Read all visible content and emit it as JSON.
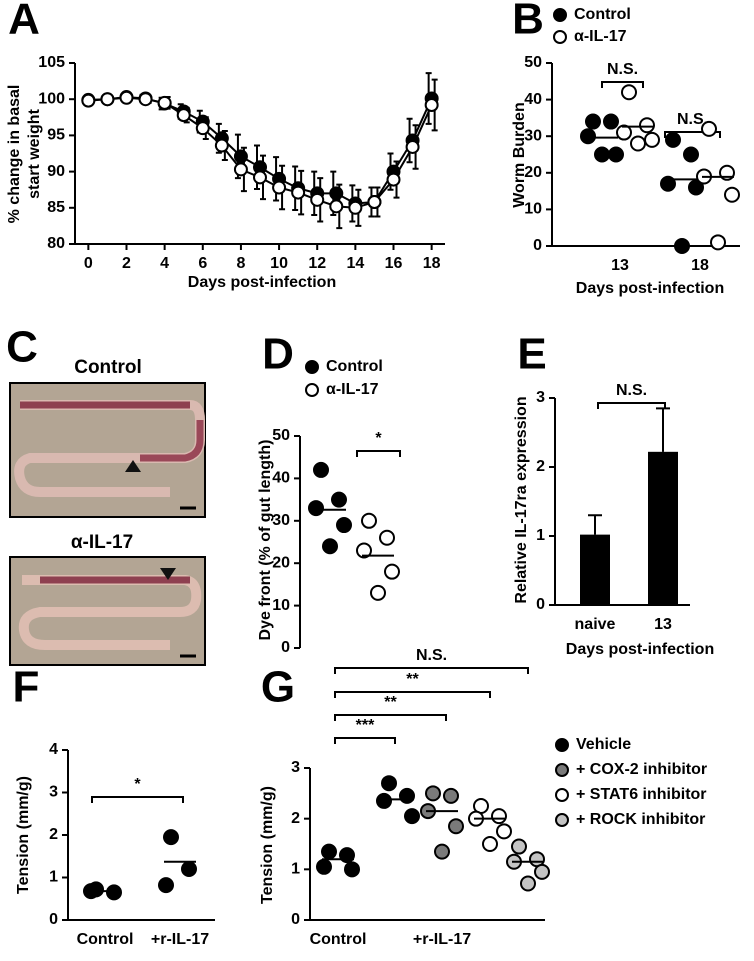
{
  "chart_data": [
    {
      "panel": "A",
      "type": "line",
      "ylabel": [
        "% change in basal",
        "start weight"
      ],
      "xlabel": "Days post-infection",
      "x": [
        0,
        1,
        2,
        3,
        4,
        5,
        6,
        7,
        8,
        9,
        10,
        11,
        12,
        13,
        14,
        15,
        16,
        17,
        18
      ],
      "xlim": [
        -0.7,
        18.7
      ],
      "xticks": [
        0,
        2,
        4,
        6,
        8,
        10,
        12,
        14,
        16,
        18
      ],
      "ylim": [
        80,
        105
      ],
      "yticks": [
        80,
        85,
        90,
        95,
        100,
        105
      ],
      "series": [
        {
          "color": "#000000",
          "values": [
            99.9,
            100,
            100.3,
            100.1,
            99.4,
            98.3,
            96.9,
            94.6,
            92.1,
            90.6,
            89.0,
            87.7,
            87.0,
            87.0,
            85.6,
            85.8,
            90.0,
            94.3,
            100.1
          ],
          "errors": [
            0.3,
            0.3,
            0.4,
            0.5,
            0.8,
            1.0,
            1.5,
            2.0,
            3.0,
            3.0,
            3.0,
            3.0,
            3.0,
            3.0,
            2.5,
            2.0,
            2.5,
            3.0,
            3.5
          ]
        },
        {
          "color": "#ffffff",
          "values": [
            99.8,
            100,
            100.2,
            100.0,
            99.5,
            97.8,
            96.0,
            93.6,
            90.3,
            89.2,
            87.8,
            87.1,
            86.1,
            85.2,
            85.0,
            85.8,
            88.9,
            93.4,
            99.2
          ],
          "errors": [
            0.3,
            0.3,
            0.4,
            0.5,
            0.8,
            1.0,
            1.5,
            2.0,
            3.0,
            3.0,
            3.0,
            3.0,
            3.0,
            3.0,
            2.5,
            2.0,
            2.5,
            3.0,
            3.5
          ]
        }
      ]
    },
    {
      "panel": "B",
      "type": "dot",
      "ylabel": "Worm Burden",
      "xlabel": "Days post-infection",
      "categories": [
        "13",
        "18"
      ],
      "ylim": [
        0,
        50
      ],
      "yticks": [
        0,
        10,
        20,
        30,
        40,
        50
      ],
      "series": [
        {
          "name": "Control",
          "color": "#000000",
          "values": [
            [
              34,
              34,
              30,
              25,
              25
            ],
            [
              29,
              25,
              17,
              16,
              0
            ]
          ],
          "means": [
            29.6,
            18.2
          ]
        },
        {
          "name": "α-IL-17",
          "color": "#ffffff",
          "values": [
            [
              42,
              33,
              31,
              29,
              28
            ],
            [
              32,
              20,
              19,
              14,
              1
            ]
          ],
          "means": [
            32.6,
            18.9
          ]
        }
      ],
      "annotations": [
        "N.S.",
        "N.S."
      ]
    },
    {
      "panel": "D",
      "type": "dot",
      "ylabel": "Dye front (% of gut length)",
      "categories": [
        null
      ],
      "ylim": [
        0,
        50
      ],
      "yticks": [
        0,
        10,
        20,
        30,
        40,
        50
      ],
      "series": [
        {
          "name": "Control",
          "color": "#000000",
          "values": [
            [
              42,
              35,
              33,
              29,
              24
            ]
          ],
          "means": [
            32.6
          ]
        },
        {
          "name": "α-IL-17",
          "color": "#ffffff",
          "values": [
            [
              30,
              26,
              23,
              18,
              13
            ]
          ],
          "means": [
            21.8
          ]
        }
      ],
      "annotations": [
        "*"
      ]
    },
    {
      "panel": "E",
      "type": "bar",
      "ylabel": "Relative IL-17ra expression",
      "xlabel": "Days post-infection",
      "categories": [
        "naive",
        "13"
      ],
      "values": [
        1.02,
        2.22
      ],
      "errors": [
        0.28,
        0.63
      ],
      "color": "#000000",
      "ylim": [
        0,
        3
      ],
      "yticks": [
        0,
        1,
        2,
        3
      ],
      "annotations": [
        "N.S."
      ]
    },
    {
      "panel": "F",
      "type": "dot",
      "ylabel": "Tension (mm/g)",
      "categories": [
        "Control",
        "+r-IL-17"
      ],
      "ylim": [
        0,
        4
      ],
      "yticks": [
        0,
        1,
        2,
        3,
        4
      ],
      "series": [
        {
          "color": "#000000",
          "values": [
            [
              0.72,
              0.65,
              0.68
            ],
            [
              1.95,
              1.2,
              0.82
            ]
          ],
          "means": [
            0.68,
            1.37
          ]
        }
      ],
      "annotations": [
        "*"
      ]
    },
    {
      "panel": "G",
      "type": "dot",
      "ylabel": "Tension (mm/g)",
      "categories": [
        "Control",
        null,
        "+r-IL-17",
        null,
        null
      ],
      "ylim": [
        0,
        3
      ],
      "yticks": [
        0,
        1,
        2,
        3
      ],
      "series": [
        {
          "name": "Vehicle",
          "color": "#000000",
          "values": [
            [
              1.35,
              1.28,
              1.05,
              1.0
            ],
            [
              2.7,
              2.45,
              2.35,
              2.05
            ],
            null,
            null,
            null
          ],
          "means": [
            1.2,
            2.38,
            null,
            null,
            null
          ]
        },
        {
          "name": "+ COX-2 inhibitor",
          "color": "#7a7a7a",
          "values": [
            null,
            null,
            [
              2.5,
              2.45,
              2.15,
              1.85,
              1.35
            ],
            null,
            null
          ],
          "means": [
            null,
            null,
            2.15,
            null,
            null
          ]
        },
        {
          "name": "+ STAT6 inhibitor",
          "color": "#ffffff",
          "values": [
            null,
            null,
            null,
            [
              2.25,
              2.05,
              2.0,
              1.75,
              1.5
            ],
            null
          ],
          "means": [
            null,
            null,
            null,
            2.0,
            null
          ]
        },
        {
          "name": "+ ROCK inhibitor",
          "color": "#c4c4c4",
          "values": [
            null,
            null,
            null,
            null,
            [
              1.45,
              1.2,
              1.15,
              0.95,
              0.72
            ]
          ],
          "means": [
            null,
            null,
            null,
            null,
            1.15
          ]
        }
      ],
      "annotations": [
        "N.S.",
        "**",
        "**",
        "***"
      ]
    }
  ],
  "photo_panel": {
    "panel": "C",
    "labels": [
      "Control",
      "α-IL-17"
    ]
  }
}
